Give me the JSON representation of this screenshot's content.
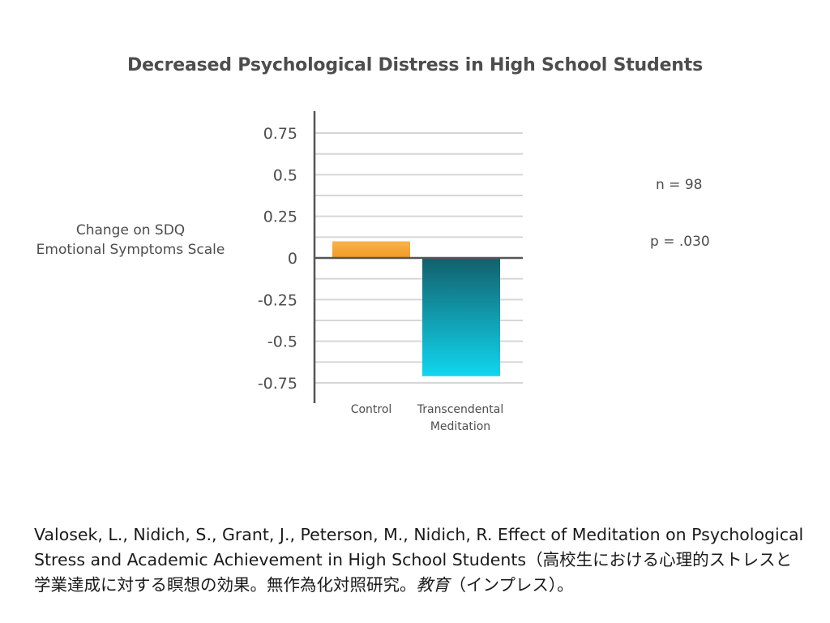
{
  "chart_data": {
    "type": "bar",
    "title": "Decreased Psychological Distress in High School Students",
    "ylabel_lines": [
      "Change on SDQ",
      "Emotional Symptoms Scale"
    ],
    "xlabel": "",
    "categories": [
      [
        "Control"
      ],
      [
        "Transcendental",
        "Meditation"
      ]
    ],
    "values": [
      0.1,
      -0.71
    ],
    "ylim": [
      -0.75,
      0.75
    ],
    "yticks": [
      0.75,
      0.5,
      0.25,
      0,
      -0.25,
      -0.5,
      -0.75
    ],
    "ytick_labels": [
      "0.75",
      "0.5",
      "0.25",
      "0",
      "-0.25",
      "-0.5",
      "-0.75"
    ],
    "minor_step": 0.125,
    "grid": true,
    "bar_colors": [
      {
        "top": "#f7b34d",
        "bottom": "#f29a25"
      },
      {
        "top": "#12606c",
        "bottom": "#10d6ef"
      }
    ],
    "annotations": [
      "n = 98",
      "p = .030"
    ]
  },
  "citation": {
    "main": "Valosek, L., Nidich, S., Grant, J., Peterson, M., Nidich, R. Effect of Meditation on Psychological Stress and Academic Achievement in High School Students（高校生における心理的ストレスと学業達成に対する瞑想の効果。無作為化対照研究。",
    "italic": "教育",
    "tail": "（インプレス）。"
  }
}
